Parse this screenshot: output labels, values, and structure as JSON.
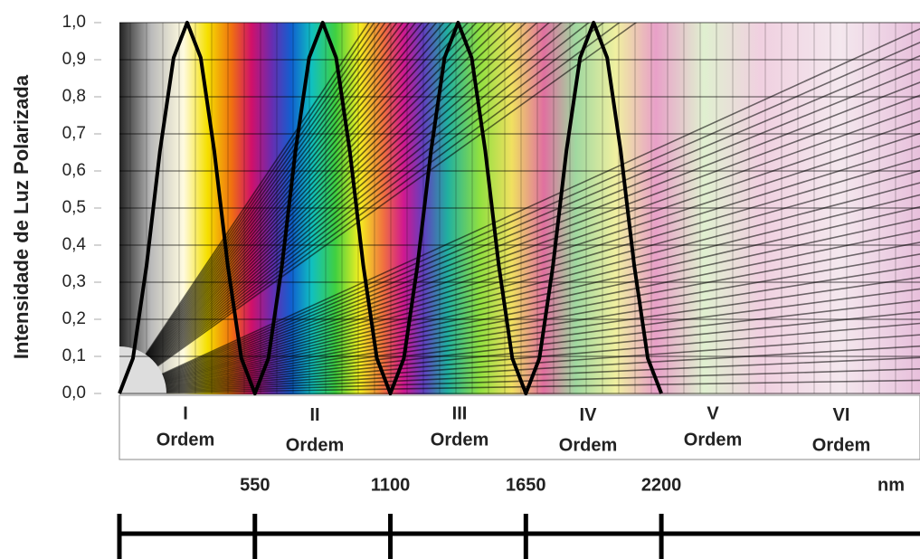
{
  "chart_data": {
    "type": "line",
    "ylabel": "Intensidade de Luz Polarizada",
    "x": [
      0,
      55,
      110,
      165,
      220,
      275,
      330,
      385,
      440,
      495,
      550,
      605,
      660,
      715,
      770,
      825,
      880,
      935,
      990,
      1045,
      1100,
      1155,
      1210,
      1265,
      1320,
      1375,
      1430,
      1485,
      1540,
      1595,
      1650,
      1705,
      1760,
      1815,
      1870,
      1925,
      1980,
      2035,
      2090,
      2145,
      2200
    ],
    "series": [
      {
        "color": "#000000",
        "values": [
          0,
          0.095,
          0.345,
          0.655,
          0.905,
          1,
          0.905,
          0.655,
          0.345,
          0.095,
          0,
          0.095,
          0.345,
          0.655,
          0.905,
          1,
          0.905,
          0.655,
          0.345,
          0.095,
          0,
          0.095,
          0.345,
          0.655,
          0.905,
          1,
          0.905,
          0.655,
          0.345,
          0.095,
          0,
          0.095,
          0.345,
          0.655,
          0.905,
          1,
          0.905,
          0.655,
          0.345,
          0.095,
          0
        ]
      }
    ],
    "xlim": [
      0,
      3250
    ],
    "xticks": [
      550,
      1100,
      1650,
      2200
    ],
    "xunit": "nm",
    "ylim": [
      0,
      1
    ],
    "yticks": [
      {
        "value": 0,
        "label": "0,0"
      },
      {
        "value": 0.1,
        "label": "0,1"
      },
      {
        "value": 0.2,
        "label": "0,2"
      },
      {
        "value": 0.3,
        "label": "0,3"
      },
      {
        "value": 0.4,
        "label": "0,4"
      },
      {
        "value": 0.5,
        "label": "0,5"
      },
      {
        "value": 0.6,
        "label": "0,6"
      },
      {
        "value": 0.7,
        "label": "0,7"
      },
      {
        "value": 0.8,
        "label": "0,8"
      },
      {
        "value": 0.9,
        "label": "0,9"
      },
      {
        "value": 1,
        "label": "1,0"
      }
    ],
    "grid": true,
    "orders": [
      {
        "numeral": "I",
        "word": "Ordem"
      },
      {
        "numeral": "II",
        "word": "Ordem"
      },
      {
        "numeral": "III",
        "word": "Ordem"
      },
      {
        "numeral": "IV",
        "word": "Ordem"
      },
      {
        "numeral": "V",
        "word": "Ordem"
      },
      {
        "numeral": "VI",
        "word": "Ordem"
      }
    ]
  }
}
